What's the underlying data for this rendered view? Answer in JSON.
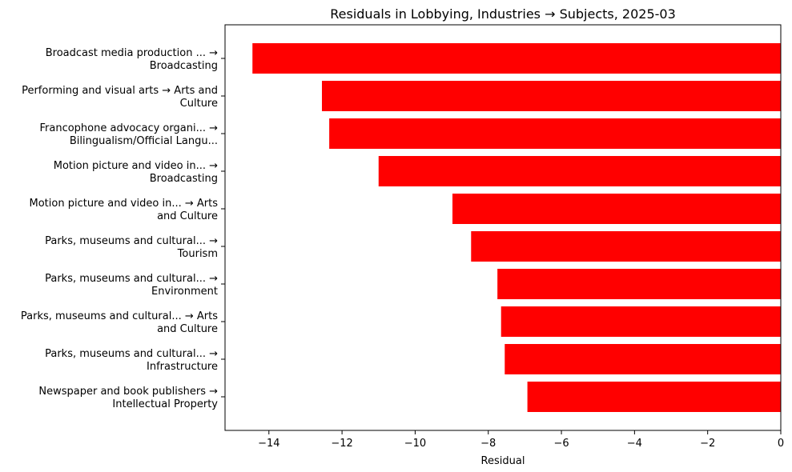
{
  "chart_data": {
    "type": "bar",
    "orientation": "horizontal",
    "title": "Residuals in Lobbying, Industries → Subjects, 2025-03",
    "xlabel": "Residual",
    "ylabel": "",
    "xlim": [
      -15.2,
      0
    ],
    "xticks": [
      -14,
      -12,
      -10,
      -8,
      -6,
      -4,
      -2,
      0
    ],
    "xtick_labels": [
      "−14",
      "−12",
      "−10",
      "−8",
      "−6",
      "−4",
      "−2",
      "0"
    ],
    "bar_color": "#ff0000",
    "grid": false,
    "categories": [
      [
        "Broadcast media production ... →",
        "Broadcasting"
      ],
      [
        "Performing and visual arts → Arts and",
        "Culture"
      ],
      [
        "Francophone advocacy organi... →",
        "Bilingualism/Official Langu..."
      ],
      [
        "Motion picture and video in... →",
        "Broadcasting"
      ],
      [
        "Motion picture and video in... → Arts",
        "and Culture"
      ],
      [
        "Parks, museums and cultural... →",
        "Tourism"
      ],
      [
        "Parks, museums and cultural... →",
        "Environment"
      ],
      [
        "Parks, museums and cultural... → Arts",
        "and Culture"
      ],
      [
        "Parks, museums and cultural... →",
        "Infrastructure"
      ],
      [
        "Newspaper and book publishers →",
        "Intellectual Property"
      ]
    ],
    "values": [
      -14.45,
      -12.55,
      -12.35,
      -11.0,
      -8.98,
      -8.47,
      -7.75,
      -7.65,
      -7.55,
      -6.93
    ]
  }
}
